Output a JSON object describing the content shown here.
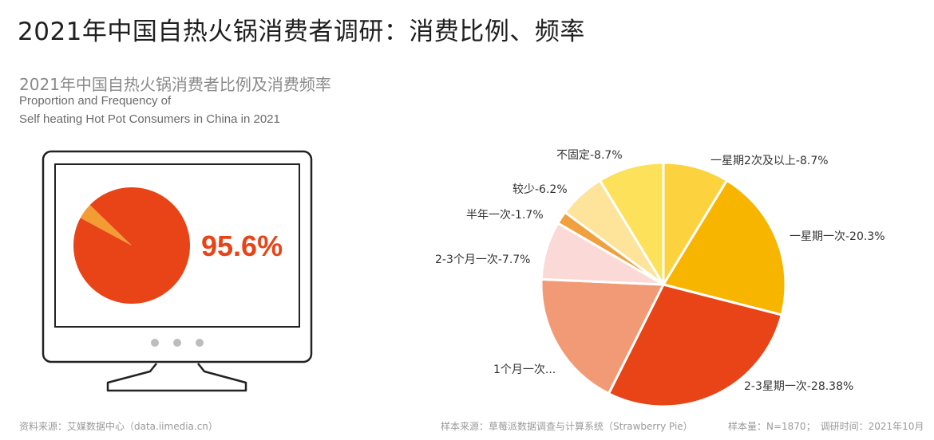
{
  "title": "2021年中国自热火锅消费者调研：消费比例、频率",
  "subtitle": "2021年中国自热火锅消费者比例及消费频率",
  "subtitle_en_line1": "Proportion and Frequency of",
  "subtitle_en_line2": "Self heating Hot Pot Consumers in China in 2021",
  "big_percent": "95.6%",
  "footer": {
    "source_left": "资料来源：艾媒数据中心（data.iimedia.cn）",
    "source_mid": "样本来源：草莓派数据调查与计算系统（Strawberry Pie）",
    "sample": "样本量：N=1870；　调研时间：2021年10月"
  },
  "chart_data": [
    {
      "type": "pie",
      "title": "",
      "values": [
        95.6,
        4.4
      ],
      "colors": [
        "#e84418",
        "#f39c34"
      ],
      "center_label": "95.6%"
    },
    {
      "type": "pie",
      "title": "",
      "slices": [
        {
          "label": "一星期2次及以上-8.7%",
          "value": 8.7,
          "color": "#fcd33f"
        },
        {
          "label": "一星期一次-20.3%",
          "value": 20.3,
          "color": "#f7b500"
        },
        {
          "label": "2-3星期一次-28.38%",
          "value": 28.38,
          "color": "#e84418"
        },
        {
          "label": "1个月一次...",
          "value": 18.3,
          "color": "#f29a76"
        },
        {
          "label": "2-3个月一次-7.7%",
          "value": 7.7,
          "color": "#fbd9d6"
        },
        {
          "label": "半年一次-1.7%",
          "value": 1.7,
          "color": "#f0a03c"
        },
        {
          "label": "较少-6.2%",
          "value": 6.2,
          "color": "#fde49a"
        },
        {
          "label": "不固定-8.7%",
          "value": 8.7,
          "color": "#fde15a"
        }
      ]
    }
  ]
}
